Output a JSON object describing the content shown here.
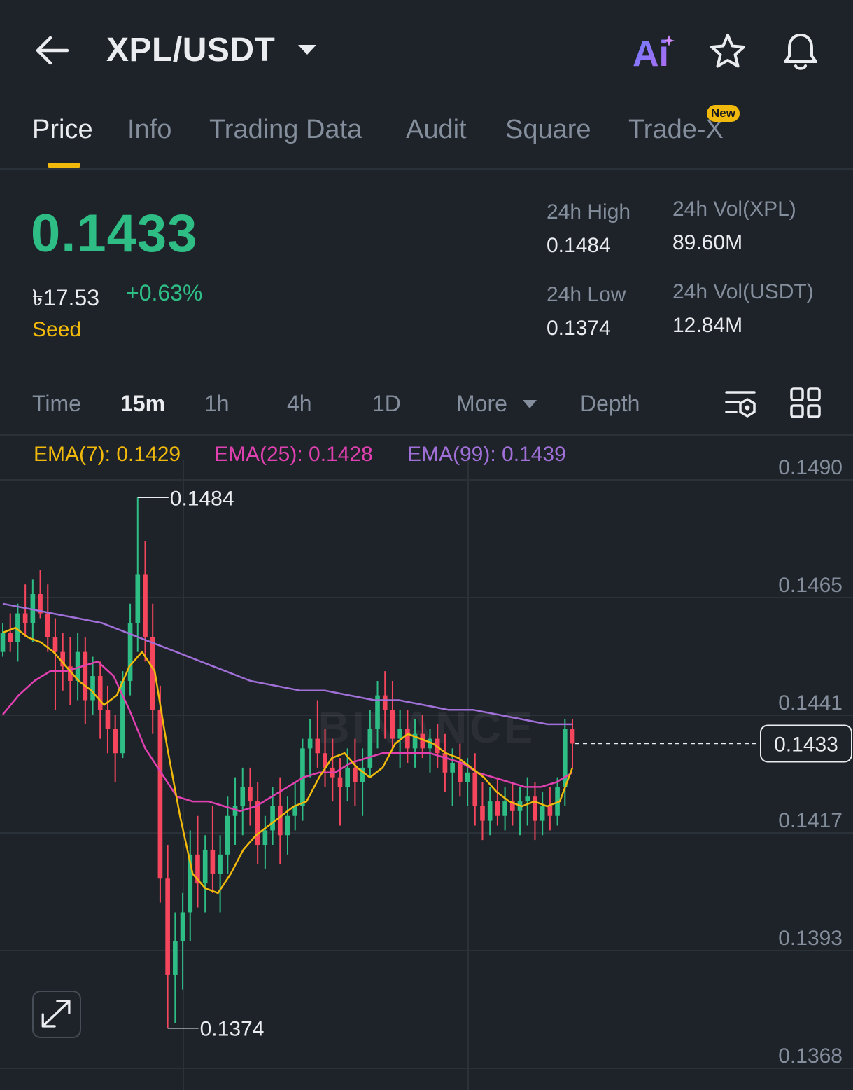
{
  "header": {
    "pair": "XPL/USDT",
    "ai_label": "Ai"
  },
  "tabs": [
    {
      "label": "Price",
      "active": true
    },
    {
      "label": "Info"
    },
    {
      "label": "Trading Data"
    },
    {
      "label": "Audit"
    },
    {
      "label": "Square"
    },
    {
      "label": "Trade-X",
      "badge": "New"
    }
  ],
  "price": {
    "last": "0.1433",
    "local": "৳17.53",
    "change": "+0.63%",
    "tag": "Seed"
  },
  "stats": {
    "high_label": "24h High",
    "high_value": "0.1484",
    "low_label": "24h Low",
    "low_value": "0.1374",
    "vol_base_label": "24h Vol(XPL)",
    "vol_base_value": "89.60M",
    "vol_quote_label": "24h Vol(USDT)",
    "vol_quote_value": "12.84M"
  },
  "intervals": [
    {
      "label": "Time"
    },
    {
      "label": "15m",
      "active": true
    },
    {
      "label": "1h"
    },
    {
      "label": "4h"
    },
    {
      "label": "1D"
    },
    {
      "label": "More"
    },
    {
      "label": "Depth"
    }
  ],
  "ema": {
    "ema7": "EMA(7): 0.1429",
    "ema25": "EMA(25): 0.1428",
    "ema99": "EMA(99): 0.1439"
  },
  "colors": {
    "up": "#2ebd85",
    "down": "#f6465d",
    "accent": "#f0b90b",
    "ema7": "#f0b90b",
    "ema25": "#e040b0",
    "ema99": "#a070d8"
  },
  "chart_data": {
    "type": "candlestick",
    "y_ticks": [
      "0.1490",
      "0.1465",
      "0.1441",
      "0.1417",
      "0.1393",
      "0.1368"
    ],
    "ylim": [
      0.1368,
      0.149
    ],
    "last_price_label": "0.1433",
    "last_price": 0.1433,
    "high_marker": "0.1484",
    "high": 0.1484,
    "low_marker": "0.1374",
    "low": 0.1374,
    "watermark": "BINANCE",
    "candles": [
      [
        0.1452,
        0.1458,
        0.1451,
        0.1456
      ],
      [
        0.1456,
        0.146,
        0.1452,
        0.1454
      ],
      [
        0.1454,
        0.1462,
        0.145,
        0.146
      ],
      [
        0.146,
        0.1466,
        0.1455,
        0.1458
      ],
      [
        0.1458,
        0.1467,
        0.1454,
        0.1464
      ],
      [
        0.1464,
        0.1469,
        0.1459,
        0.146
      ],
      [
        0.146,
        0.1466,
        0.1452,
        0.1455
      ],
      [
        0.1455,
        0.1459,
        0.144,
        0.1452
      ],
      [
        0.1452,
        0.1456,
        0.1444,
        0.1449
      ],
      [
        0.1449,
        0.1455,
        0.1441,
        0.1446
      ],
      [
        0.1446,
        0.1456,
        0.1442,
        0.1452
      ],
      [
        0.1452,
        0.1455,
        0.1437,
        0.1442
      ],
      [
        0.1442,
        0.1451,
        0.1439,
        0.1447
      ],
      [
        0.1447,
        0.145,
        0.1434,
        0.144
      ],
      [
        0.144,
        0.1445,
        0.1431,
        0.1436
      ],
      [
        0.1436,
        0.1439,
        0.1425,
        0.1431
      ],
      [
        0.1431,
        0.1448,
        0.143,
        0.1446
      ],
      [
        0.1446,
        0.1462,
        0.1443,
        0.1458
      ],
      [
        0.1458,
        0.1484,
        0.1452,
        0.1468
      ],
      [
        0.1468,
        0.1475,
        0.145,
        0.1455
      ],
      [
        0.1455,
        0.1462,
        0.1435,
        0.144
      ],
      [
        0.144,
        0.1445,
        0.14,
        0.1405
      ],
      [
        0.1405,
        0.1412,
        0.1374,
        0.1385
      ],
      [
        0.1385,
        0.1398,
        0.1375,
        0.1392
      ],
      [
        0.1392,
        0.1402,
        0.1382,
        0.1398
      ],
      [
        0.1398,
        0.1415,
        0.1392,
        0.141
      ],
      [
        0.141,
        0.1418,
        0.1399,
        0.1404
      ],
      [
        0.1404,
        0.1414,
        0.1398,
        0.1411
      ],
      [
        0.1411,
        0.142,
        0.1402,
        0.1406
      ],
      [
        0.1406,
        0.1414,
        0.1398,
        0.141
      ],
      [
        0.141,
        0.1422,
        0.1406,
        0.1418
      ],
      [
        0.1418,
        0.1426,
        0.1412,
        0.142
      ],
      [
        0.142,
        0.1428,
        0.1414,
        0.1424
      ],
      [
        0.1424,
        0.1428,
        0.1416,
        0.1421
      ],
      [
        0.1421,
        0.1425,
        0.1408,
        0.1412
      ],
      [
        0.1412,
        0.1418,
        0.1407,
        0.1415
      ],
      [
        0.1415,
        0.1424,
        0.1412,
        0.142
      ],
      [
        0.142,
        0.1426,
        0.1408,
        0.1414
      ],
      [
        0.1414,
        0.1422,
        0.141,
        0.1418
      ],
      [
        0.1418,
        0.1425,
        0.1415,
        0.142
      ],
      [
        0.142,
        0.1434,
        0.1417,
        0.1432
      ],
      [
        0.1432,
        0.1438,
        0.1426,
        0.1434
      ],
      [
        0.1434,
        0.1442,
        0.1428,
        0.1431
      ],
      [
        0.1431,
        0.1436,
        0.1424,
        0.1428
      ],
      [
        0.1428,
        0.1434,
        0.1421,
        0.1426
      ],
      [
        0.1426,
        0.143,
        0.1416,
        0.1424
      ],
      [
        0.1424,
        0.1432,
        0.1421,
        0.1428
      ],
      [
        0.1428,
        0.1434,
        0.142,
        0.1425
      ],
      [
        0.1425,
        0.1432,
        0.1418,
        0.1428
      ],
      [
        0.1428,
        0.144,
        0.1426,
        0.1436
      ],
      [
        0.1436,
        0.1446,
        0.1432,
        0.1443
      ],
      [
        0.1443,
        0.1448,
        0.1434,
        0.144
      ],
      [
        0.144,
        0.1446,
        0.1432,
        0.1434
      ],
      [
        0.1434,
        0.144,
        0.1428,
        0.1436
      ],
      [
        0.1436,
        0.144,
        0.1429,
        0.1432
      ],
      [
        0.1432,
        0.1438,
        0.1428,
        0.1435
      ],
      [
        0.1435,
        0.1439,
        0.143,
        0.1432
      ],
      [
        0.1432,
        0.1436,
        0.1427,
        0.1434
      ],
      [
        0.1434,
        0.1437,
        0.1428,
        0.1431
      ],
      [
        0.1431,
        0.1435,
        0.1423,
        0.1427
      ],
      [
        0.1427,
        0.1432,
        0.142,
        0.1429
      ],
      [
        0.1429,
        0.1433,
        0.1422,
        0.1425
      ],
      [
        0.1425,
        0.143,
        0.142,
        0.1427
      ],
      [
        0.1427,
        0.1431,
        0.1416,
        0.142
      ],
      [
        0.142,
        0.1425,
        0.1413,
        0.1417
      ],
      [
        0.1417,
        0.1424,
        0.1414,
        0.1421
      ],
      [
        0.1421,
        0.1426,
        0.1416,
        0.1418
      ],
      [
        0.1418,
        0.1424,
        0.1415,
        0.1421
      ],
      [
        0.1421,
        0.1425,
        0.1416,
        0.1419
      ],
      [
        0.1419,
        0.1424,
        0.1414,
        0.1421
      ],
      [
        0.1421,
        0.1426,
        0.1416,
        0.1422
      ],
      [
        0.1422,
        0.1425,
        0.1413,
        0.1417
      ],
      [
        0.1417,
        0.1423,
        0.1414,
        0.142
      ],
      [
        0.142,
        0.1424,
        0.1415,
        0.1418
      ],
      [
        0.1418,
        0.1426,
        0.1416,
        0.1424
      ],
      [
        0.1424,
        0.1438,
        0.142,
        0.1436
      ],
      [
        0.1436,
        0.1438,
        0.1428,
        0.1433
      ]
    ],
    "ema7_values": [
      0.1456,
      0.1457,
      0.1455,
      0.1454,
      0.1452,
      0.1449,
      0.1446,
      0.1444,
      0.1441,
      0.1443,
      0.1449,
      0.1452,
      0.1448,
      0.1432,
      0.1418,
      0.1406,
      0.1403,
      0.1402,
      0.1406,
      0.1411,
      0.1414,
      0.1416,
      0.1418,
      0.142,
      0.1421,
      0.1426,
      0.143,
      0.1431,
      0.1428,
      0.1426,
      0.1428,
      0.1433,
      0.1435,
      0.1434,
      0.1433,
      0.1431,
      0.143,
      0.1428,
      0.1426,
      0.1423,
      0.1421,
      0.142,
      0.1421,
      0.142,
      0.1421,
      0.1428
    ],
    "ema25_values": [
      0.1439,
      0.1443,
      0.1446,
      0.1448,
      0.1448,
      0.1449,
      0.145,
      0.1447,
      0.144,
      0.1432,
      0.1427,
      0.1422,
      0.1421,
      0.1421,
      0.142,
      0.1419,
      0.142,
      0.1422,
      0.1424,
      0.1426,
      0.1427,
      0.1427,
      0.1429,
      0.143,
      0.1431,
      0.1431,
      0.1431,
      0.1431,
      0.143,
      0.1429,
      0.1427,
      0.1426,
      0.1425,
      0.1424,
      0.1424,
      0.1425,
      0.1427
    ],
    "ema99_values": [
      0.1462,
      0.1461,
      0.146,
      0.1459,
      0.1458,
      0.1456,
      0.1454,
      0.1452,
      0.145,
      0.1448,
      0.1446,
      0.1445,
      0.1444,
      0.1444,
      0.1443,
      0.1442,
      0.1442,
      0.1441,
      0.144,
      0.144,
      0.1439,
      0.1438,
      0.1437,
      0.1437
    ]
  }
}
